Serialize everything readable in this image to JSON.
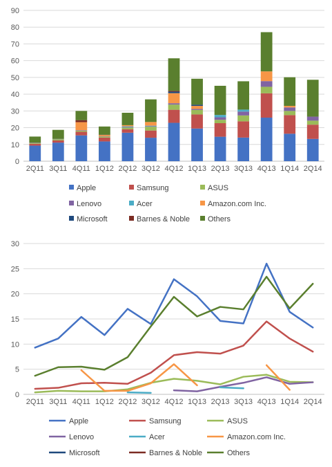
{
  "chart_data": [
    {
      "type": "bar",
      "stacked": true,
      "categories": [
        "2Q11",
        "3Q11",
        "4Q11",
        "1Q12",
        "2Q12",
        "3Q12",
        "4Q12",
        "1Q13",
        "2Q13",
        "3Q13",
        "4Q13",
        "1Q14",
        "2Q14"
      ],
      "ylim": [
        0,
        90
      ],
      "yticks": [
        0,
        10,
        20,
        30,
        40,
        50,
        60,
        70,
        80,
        90
      ],
      "grid": true,
      "legend": "bottom",
      "series": [
        {
          "name": "Apple",
          "color": "#4472C4",
          "values": [
            9.3,
            11.1,
            15.4,
            11.8,
            17.0,
            14.0,
            22.9,
            19.5,
            14.6,
            14.1,
            26.0,
            16.4,
            13.3
          ]
        },
        {
          "name": "Samsung",
          "color": "#C0504D",
          "values": [
            1.1,
            1.3,
            2.2,
            2.3,
            2.1,
            4.3,
            7.8,
            8.4,
            8.1,
            9.7,
            14.5,
            11.1,
            8.5
          ]
        },
        {
          "name": "ASUS",
          "color": "#9BBB59",
          "values": [
            0.4,
            0.7,
            0.6,
            0.6,
            1.0,
            2.3,
            3.1,
            2.7,
            2.0,
            3.5,
            3.9,
            2.5,
            2.4
          ]
        },
        {
          "name": "Lenovo",
          "color": "#8064A2",
          "values": [
            0.2,
            0.2,
            0.3,
            0.2,
            0.3,
            0.3,
            0.8,
            0.6,
            1.5,
            2.3,
            3.4,
            2.1,
            2.4
          ]
        },
        {
          "name": "Acer",
          "color": "#4BACC6",
          "values": [
            0.0,
            0.0,
            0.0,
            0.0,
            0.4,
            0.3,
            0.0,
            0.0,
            1.4,
            1.2,
            0.0,
            0.0,
            0.0
          ]
        },
        {
          "name": "Amazon.com Inc.",
          "color": "#F79646",
          "values": [
            0.0,
            0.0,
            4.8,
            0.7,
            0.7,
            2.2,
            6.0,
            1.8,
            0.0,
            0.0,
            5.8,
            0.9,
            0.0
          ]
        },
        {
          "name": "Microsoft",
          "color": "#1F497D",
          "values": [
            0.0,
            0.0,
            0.0,
            0.0,
            0.0,
            0.0,
            0.9,
            0.7,
            0.0,
            0.0,
            0.0,
            0.0,
            0.0
          ]
        },
        {
          "name": "Barnes & Noble",
          "color": "#7B2C23",
          "values": [
            0.0,
            0.0,
            1.2,
            0.2,
            0.0,
            0.0,
            0.5,
            0.0,
            0.0,
            0.0,
            0.0,
            0.0,
            0.0
          ]
        },
        {
          "name": "Others",
          "color": "#5A7F2E",
          "values": [
            3.7,
            5.4,
            5.5,
            4.9,
            7.4,
            13.5,
            19.4,
            15.5,
            17.4,
            16.9,
            23.4,
            17.1,
            22.0
          ]
        }
      ]
    },
    {
      "type": "line",
      "categories": [
        "2Q11",
        "3Q11",
        "4Q11",
        "1Q12",
        "2Q12",
        "3Q12",
        "4Q12",
        "1Q13",
        "2Q13",
        "3Q13",
        "4Q13",
        "1Q14",
        "2Q14"
      ],
      "ylim": [
        0,
        30
      ],
      "yticks": [
        0,
        5,
        10,
        15,
        20,
        25,
        30
      ],
      "grid": true,
      "legend": "bottom",
      "series": [
        {
          "name": "Apple",
          "color": "#4472C4",
          "values": [
            9.3,
            11.1,
            15.4,
            11.8,
            17.0,
            14.0,
            22.9,
            19.5,
            14.6,
            14.1,
            26.0,
            16.4,
            13.3
          ]
        },
        {
          "name": "Samsung",
          "color": "#C0504D",
          "values": [
            1.1,
            1.3,
            2.2,
            2.3,
            2.1,
            4.3,
            7.8,
            8.4,
            8.1,
            9.7,
            14.5,
            11.1,
            8.5
          ]
        },
        {
          "name": "ASUS",
          "color": "#9BBB59",
          "values": [
            0.4,
            0.7,
            0.6,
            0.6,
            1.0,
            2.3,
            3.1,
            2.7,
            2.0,
            3.5,
            3.9,
            2.5,
            2.4
          ]
        },
        {
          "name": "Lenovo",
          "color": "#8064A2",
          "values": [
            null,
            null,
            null,
            null,
            null,
            null,
            0.8,
            0.6,
            1.5,
            2.3,
            3.4,
            2.1,
            2.4
          ]
        },
        {
          "name": "Acer",
          "color": "#4BACC6",
          "values": [
            null,
            null,
            null,
            null,
            0.4,
            0.3,
            null,
            null,
            1.4,
            1.2,
            null,
            null,
            null
          ]
        },
        {
          "name": "Amazon.com Inc.",
          "color": "#F79646",
          "values": [
            null,
            null,
            4.8,
            0.7,
            0.7,
            2.2,
            6.0,
            1.8,
            null,
            null,
            5.8,
            0.9,
            null
          ]
        },
        {
          "name": "Microsoft",
          "color": "#1F497D",
          "values": [
            null,
            null,
            null,
            null,
            null,
            null,
            null,
            null,
            null,
            null,
            null,
            null,
            null
          ]
        },
        {
          "name": "Barnes & Noble",
          "color": "#7B2C23",
          "values": [
            null,
            null,
            null,
            null,
            null,
            null,
            null,
            null,
            null,
            null,
            null,
            null,
            null
          ]
        },
        {
          "name": "Others",
          "color": "#5A7F2E",
          "values": [
            3.7,
            5.4,
            5.5,
            4.9,
            7.4,
            13.5,
            19.4,
            15.5,
            17.4,
            16.9,
            23.4,
            17.1,
            22.0
          ]
        }
      ]
    }
  ]
}
